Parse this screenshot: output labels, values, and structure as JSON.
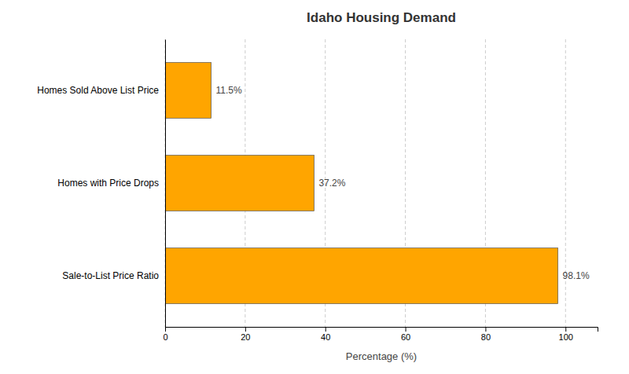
{
  "chart_data": {
    "type": "bar",
    "orientation": "horizontal",
    "title": "Idaho Housing Demand",
    "categories": [
      "Sale-to-List Price Ratio",
      "Homes with Price Drops",
      "Homes Sold Above List Price"
    ],
    "values": [
      98.1,
      37.2,
      11.5
    ],
    "value_labels": [
      "98.1%",
      "37.2%",
      "11.5%"
    ],
    "data_labels": true,
    "color": "#FFA500",
    "xlabel": "Percentage (%)",
    "xlim": [
      0,
      108
    ],
    "xticks": [
      0,
      20,
      40,
      60,
      80,
      100
    ],
    "grid": true
  }
}
